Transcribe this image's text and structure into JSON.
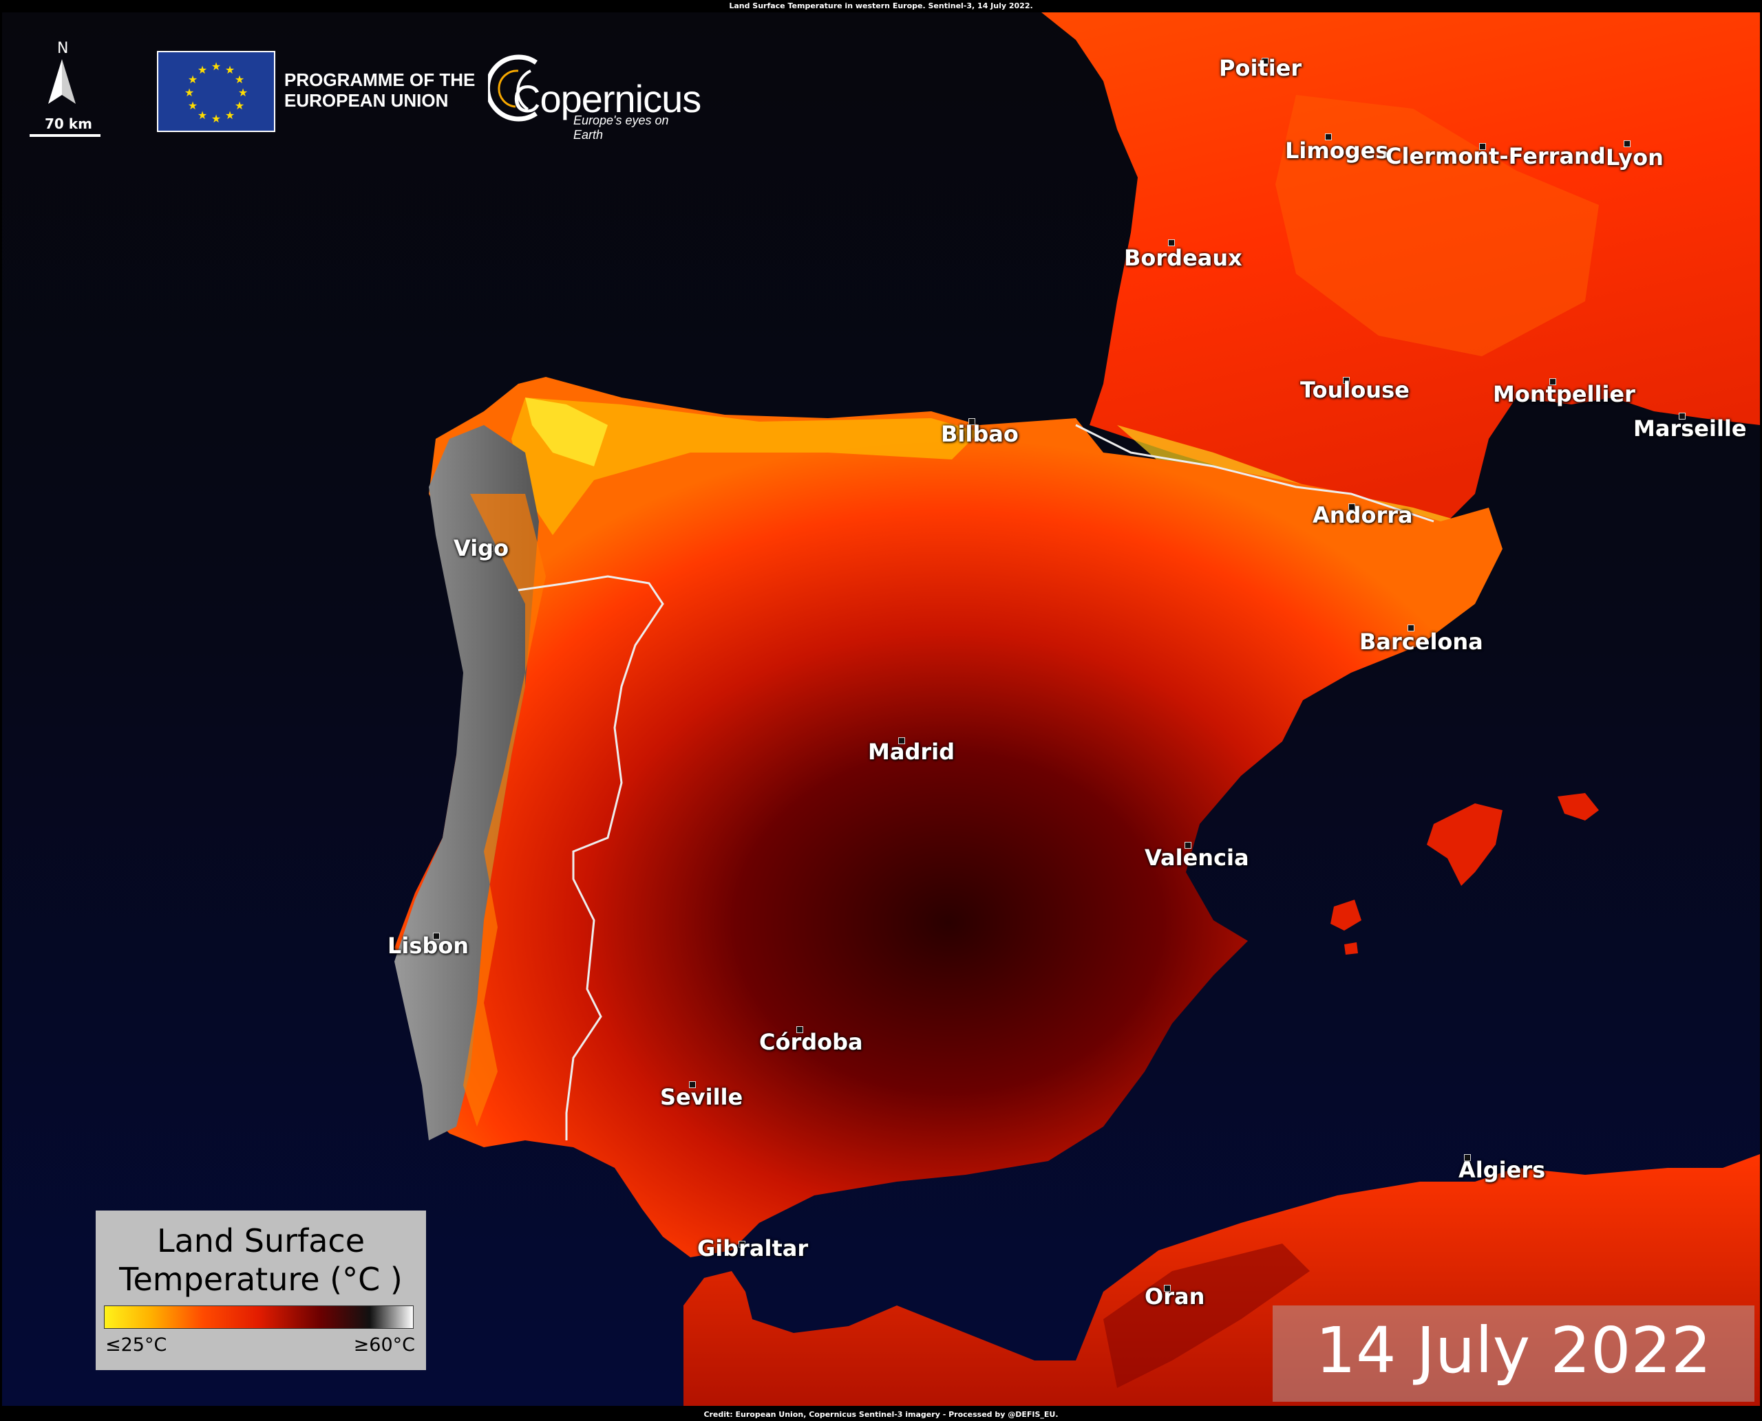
{
  "header_caption": "Land Surface Temperature in western Europe. Sentinel-3, 14 July 2022.",
  "footer_credit": "Credit: European Union, Copernicus  Sentinel-3 imagery - Processed by @DEFIS_EU.",
  "north_arrow": {
    "letter": "N",
    "scale_label": "70 km",
    "icon": "north-arrow-icon"
  },
  "eu_logo": {
    "text_line1": "PROGRAMME OF THE",
    "text_line2": "EUROPEAN UNION",
    "icon": "eu-flag-icon"
  },
  "copernicus_logo": {
    "word": "Copernicus",
    "tagline": "Europe's eyes on Earth",
    "icon": "copernicus-logo-icon"
  },
  "legend": {
    "title_line1": "Land Surface",
    "title_line2": "Temperature (°C )",
    "min_label": "≤25°C",
    "max_label": "≥60°C",
    "ramp_colors": [
      "#fff21a",
      "#ffb100",
      "#ff4a00",
      "#e21c00",
      "#6b0000",
      "#111111",
      "#ffffff"
    ]
  },
  "date_label": "14 July 2022",
  "cities": [
    {
      "name": "Poitier"
    },
    {
      "name": "Limoges"
    },
    {
      "name": "Clermont-Ferrand"
    },
    {
      "name": "Lyon"
    },
    {
      "name": "Bordeaux"
    },
    {
      "name": "Toulouse"
    },
    {
      "name": "Montpellier"
    },
    {
      "name": "Marseille"
    },
    {
      "name": "Bilbao"
    },
    {
      "name": "Andorra"
    },
    {
      "name": "Vigo"
    },
    {
      "name": "Barcelona"
    },
    {
      "name": "Madrid"
    },
    {
      "name": "Valencia"
    },
    {
      "name": "Lisbon"
    },
    {
      "name": "Córdoba"
    },
    {
      "name": "Seville"
    },
    {
      "name": "Algiers"
    },
    {
      "name": "Gibraltar"
    },
    {
      "name": "Oran"
    }
  ],
  "colors": {
    "sea": "#050a2e",
    "hot": "#7a0000",
    "warm": "#ff3000",
    "cool": "#ffd000"
  }
}
